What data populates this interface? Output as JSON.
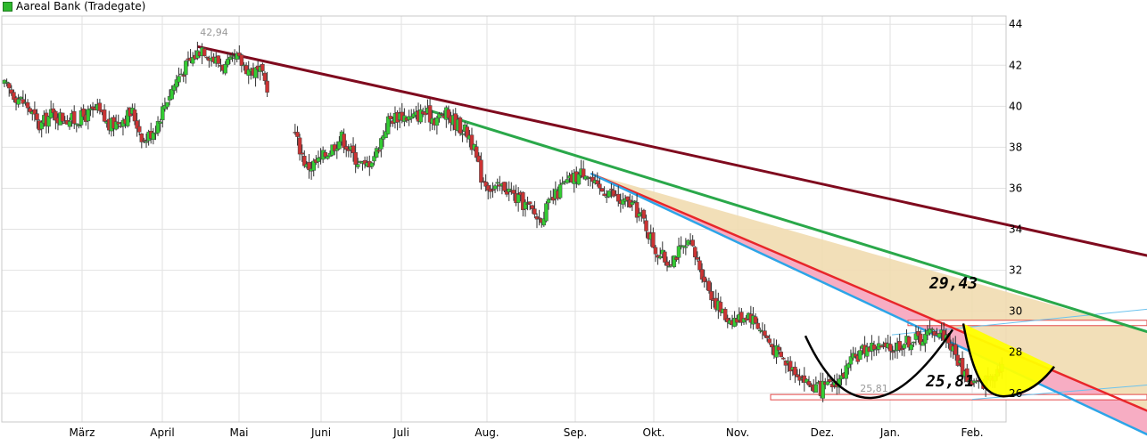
{
  "chart_data": {
    "type": "candlestick",
    "title": "Aareal Bank (Tradegate)",
    "legend": {
      "label": "Aareal Bank (Tradegate)",
      "color": "#2eb82e",
      "placement": "top-left"
    },
    "x_ticks": [
      "März",
      "April",
      "Mai",
      "Juni",
      "Juli",
      "Aug.",
      "Sep.",
      "Okt.",
      "Nov.",
      "Dez.",
      "Jan.",
      "Feb."
    ],
    "y_ticks": [
      44,
      42,
      40,
      38,
      36,
      34,
      32,
      30,
      28,
      26
    ],
    "ylim": [
      24.6,
      44.4
    ],
    "grid": true,
    "period": "Februar bis Februar (ca. 12 Monate)",
    "annotations": {
      "high": {
        "label": "42,94",
        "value": 42.94,
        "month": "April/Mai"
      },
      "low": {
        "label": "25,81",
        "value": 25.81,
        "month": "Dez./Jan."
      },
      "big_high_label": "29,43",
      "big_low_label": "25,81"
    },
    "price_path": [
      [
        0,
        41.0
      ],
      [
        2,
        40.0
      ],
      [
        3,
        39.0
      ],
      [
        4,
        39.6
      ],
      [
        6,
        39.3
      ],
      [
        8,
        39.8
      ],
      [
        9,
        39.0
      ],
      [
        11,
        39.7
      ],
      [
        12,
        38.3
      ],
      [
        13,
        39.0
      ],
      [
        14,
        40.4
      ],
      [
        15,
        41.5
      ],
      [
        17,
        42.9
      ],
      [
        18,
        42.3
      ],
      [
        19,
        41.9
      ],
      [
        20,
        42.3
      ],
      [
        21,
        41.8
      ],
      [
        22,
        41.6
      ],
      [
        25,
        38.6
      ],
      [
        26,
        37.0
      ],
      [
        27,
        37.3
      ],
      [
        29,
        38.5
      ],
      [
        30,
        37.6
      ],
      [
        31,
        37.0
      ],
      [
        32,
        37.8
      ],
      [
        33,
        39.3
      ],
      [
        34,
        39.6
      ],
      [
        35,
        39.4
      ],
      [
        36,
        39.7
      ],
      [
        37,
        39.4
      ],
      [
        38,
        39.6
      ],
      [
        39,
        39.1
      ],
      [
        40,
        38.6
      ],
      [
        41,
        36.6
      ],
      [
        42,
        35.9
      ],
      [
        43,
        36.1
      ],
      [
        44,
        35.5
      ],
      [
        45,
        35.1
      ],
      [
        46,
        34.5
      ],
      [
        47,
        35.3
      ],
      [
        48,
        36.1
      ],
      [
        49,
        36.5
      ],
      [
        50,
        36.9
      ],
      [
        51,
        35.9
      ],
      [
        52,
        35.9
      ],
      [
        53,
        35.3
      ],
      [
        54,
        35.2
      ],
      [
        55,
        34.4
      ],
      [
        56,
        33.0
      ],
      [
        57,
        32.4
      ],
      [
        58,
        32.9
      ],
      [
        59,
        33.2
      ],
      [
        60,
        31.9
      ],
      [
        61,
        30.6
      ],
      [
        62,
        29.7
      ],
      [
        63,
        29.6
      ],
      [
        64,
        29.9
      ],
      [
        65,
        29.2
      ],
      [
        66,
        28.3
      ],
      [
        67,
        27.6
      ],
      [
        68,
        27.2
      ],
      [
        69,
        26.5
      ],
      [
        70,
        26.2
      ],
      [
        71,
        26.3
      ],
      [
        72,
        26.8
      ],
      [
        73,
        27.6
      ],
      [
        74,
        28.2
      ],
      [
        75,
        28.3
      ],
      [
        76,
        28.1
      ],
      [
        77,
        28.4
      ],
      [
        78,
        28.6
      ],
      [
        79,
        28.7
      ],
      [
        80,
        29.1
      ],
      [
        81,
        28.8
      ],
      [
        82,
        27.6
      ],
      [
        83,
        26.6
      ],
      [
        84,
        26.4
      ],
      [
        85,
        27.0
      ],
      [
        86,
        27.5
      ]
    ],
    "trend_lines": [
      {
        "name": "long-term-resistance",
        "color": "#7f0a1e",
        "from": [
          16.7,
          42.9
        ],
        "to": [
          96,
          33.0
        ]
      },
      {
        "name": "green-resistance",
        "color": "#2aa84a",
        "from": [
          36.5,
          39.8
        ],
        "to": [
          96,
          29.4
        ]
      },
      {
        "name": "red-resistance",
        "color": "#e8262a",
        "from": [
          50.5,
          36.7
        ],
        "to": [
          96,
          25.7
        ]
      },
      {
        "name": "blue-support",
        "color": "#2ca5e8",
        "from": [
          50.5,
          36.7
        ],
        "to": [
          96,
          24.6
        ]
      }
    ]
  }
}
